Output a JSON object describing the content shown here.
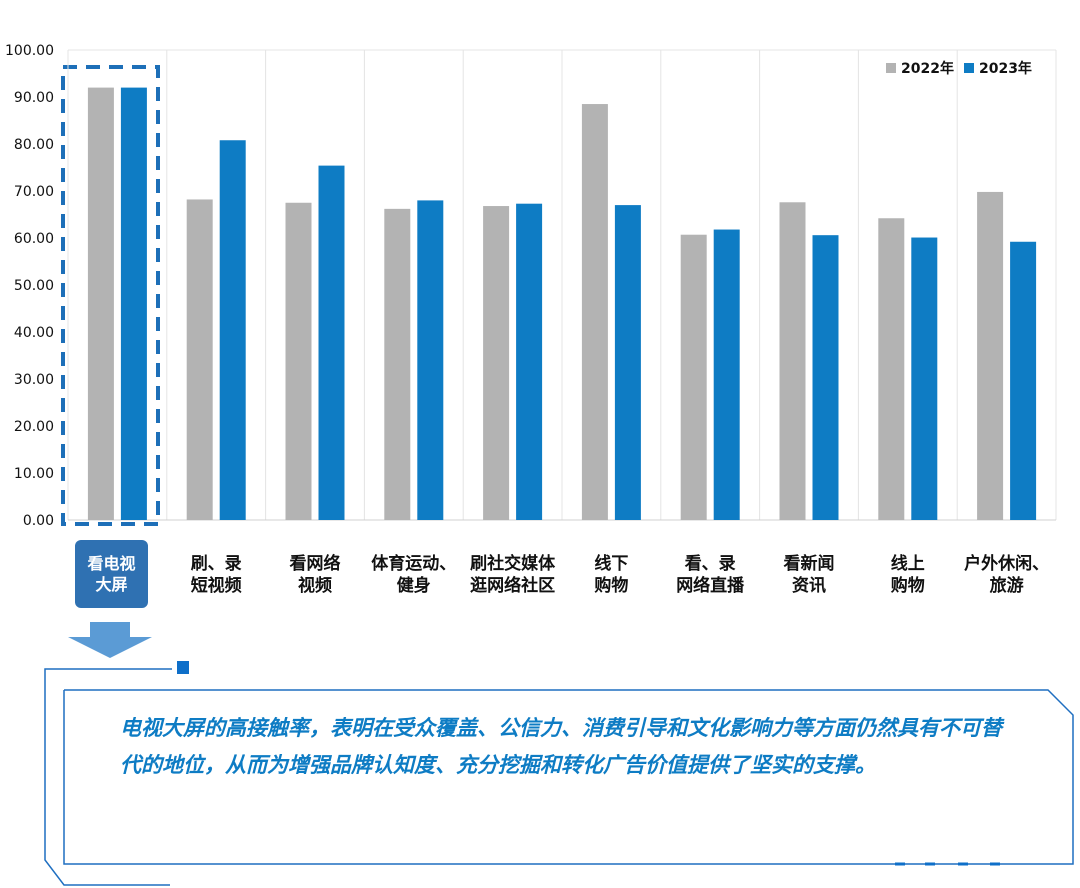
{
  "chart_data": {
    "type": "bar",
    "categories": [
      "看电视\n大屏",
      "刷、录\n短视频",
      "看网络\n视频",
      "体育运动、\n健身",
      "刷社交媒体\n逛网络社区",
      "线下\n购物",
      "看、录\n网络直播",
      "看新闻\n资讯",
      "线上\n购物",
      "户外休闲、\n旅游"
    ],
    "series": [
      {
        "name": "2022年",
        "color": "#b3b3b3",
        "values": [
          92.0,
          68.2,
          67.5,
          66.2,
          66.8,
          88.5,
          60.7,
          67.6,
          64.2,
          69.8
        ]
      },
      {
        "name": "2023年",
        "color": "#0e7cc4",
        "values": [
          92.0,
          80.8,
          75.4,
          68.0,
          67.3,
          67.0,
          61.8,
          60.6,
          60.1,
          59.2
        ]
      }
    ],
    "ylim": [
      0,
      100
    ],
    "yticks": [
      "0.00",
      "10.00",
      "20.00",
      "30.00",
      "40.00",
      "50.00",
      "60.00",
      "70.00",
      "80.00",
      "90.00",
      "100.00"
    ],
    "legend_position": "top-right",
    "grid": "vertical-category-separators"
  },
  "conclusion": "电视大屏的高接触率，表明在受众覆盖、公信力、消费引导和文化影响力等方面仍然具有不可替代的地位，从而为增强品牌认知度、充分挖掘和转化广告价值提供了坚实的支撑。",
  "highlight_color": "#1d6fb8",
  "badge_color": "#2f71b2"
}
